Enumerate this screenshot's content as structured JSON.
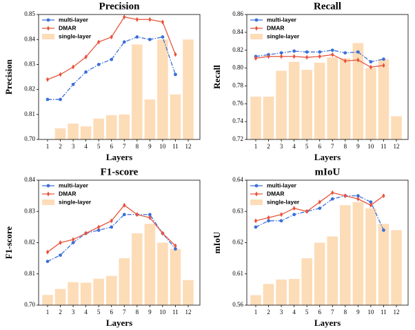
{
  "chart_data": [
    {
      "type": "combo",
      "title": "Precision",
      "x_label": "Layers",
      "y_label": "Precision",
      "categories": [
        1,
        2,
        3,
        4,
        5,
        6,
        7,
        8,
        9,
        10,
        11,
        12
      ],
      "ylim": [
        0.7,
        0.85
      ],
      "yticks": [
        {
          "value": 0.7,
          "label": "0.70"
        },
        0.81,
        0.82,
        0.83,
        0.84,
        0.85
      ],
      "series": [
        {
          "name": "multi-layer",
          "type": "line",
          "color": "#3b6fd9",
          "values": [
            0.816,
            0.816,
            0.822,
            0.827,
            0.83,
            0.832,
            0.839,
            0.841,
            0.84,
            0.841,
            0.826,
            null
          ]
        },
        {
          "name": "DMAR",
          "type": "line",
          "color": "#e8543c",
          "values": [
            0.824,
            0.826,
            0.829,
            0.833,
            0.839,
            0.841,
            0.849,
            0.848,
            0.848,
            0.847,
            0.834,
            null
          ]
        },
        {
          "name": "single-layer",
          "type": "bar",
          "color": "#fddcb8",
          "values": [
            0.701,
            0.749,
            0.77,
            0.758,
            0.792,
            0.807,
            0.81,
            0.838,
            0.816,
            0.84,
            0.818,
            0.84
          ]
        }
      ]
    },
    {
      "type": "combo",
      "title": "Recall",
      "x_label": "Layers",
      "y_label": "Recall",
      "categories": [
        1,
        2,
        3,
        4,
        5,
        6,
        7,
        8,
        9,
        10,
        11,
        12
      ],
      "ylim": [
        0.72,
        0.86
      ],
      "yticks": [
        0.72,
        0.74,
        0.76,
        0.78,
        {
          "value": 0.8,
          "label": "0.80"
        },
        0.82,
        0.84,
        0.86
      ],
      "series": [
        {
          "name": "multi-layer",
          "type": "line",
          "color": "#3b6fd9",
          "values": [
            0.813,
            0.815,
            0.817,
            0.819,
            0.818,
            0.818,
            0.82,
            0.817,
            0.818,
            0.807,
            0.81,
            null
          ]
        },
        {
          "name": "DMAR",
          "type": "line",
          "color": "#e8543c",
          "values": [
            0.811,
            0.813,
            0.813,
            0.813,
            0.812,
            0.813,
            0.815,
            0.808,
            0.809,
            0.801,
            0.803,
            null
          ]
        },
        {
          "name": "single-layer",
          "type": "bar",
          "color": "#fddcb8",
          "values": [
            0.768,
            0.768,
            0.797,
            0.807,
            0.798,
            0.806,
            0.812,
            0.811,
            0.828,
            0.8,
            0.81,
            0.746
          ]
        }
      ]
    },
    {
      "type": "combo",
      "title": "F1-score",
      "x_label": "Layers",
      "y_label": "F1-score",
      "categories": [
        1,
        2,
        3,
        4,
        5,
        6,
        7,
        8,
        9,
        10,
        11,
        12
      ],
      "ylim": [
        0.7,
        0.84
      ],
      "yticks": [
        {
          "value": 0.7,
          "label": "0.70"
        },
        0.81,
        0.82,
        0.83,
        0.84
      ],
      "series": [
        {
          "name": "multi-layer",
          "type": "line",
          "color": "#3b6fd9",
          "values": [
            0.814,
            0.816,
            0.82,
            0.823,
            0.824,
            0.825,
            0.829,
            0.829,
            0.829,
            0.823,
            0.818,
            null
          ]
        },
        {
          "name": "DMAR",
          "type": "line",
          "color": "#e8543c",
          "values": [
            0.817,
            0.82,
            0.821,
            0.823,
            0.825,
            0.827,
            0.832,
            0.829,
            0.828,
            0.823,
            0.819,
            null
          ]
        },
        {
          "name": "single-layer",
          "type": "bar",
          "color": "#fddcb8",
          "values": [
            0.736,
            0.757,
            0.781,
            0.779,
            0.793,
            0.803,
            0.815,
            0.823,
            0.826,
            0.82,
            0.818,
            0.788
          ]
        }
      ]
    },
    {
      "type": "combo",
      "title": "mIoU",
      "x_label": "Layers",
      "y_label": "mIoU",
      "categories": [
        1,
        2,
        3,
        4,
        5,
        6,
        7,
        8,
        9,
        10,
        11,
        12
      ],
      "ylim": [
        0.56,
        0.64
      ],
      "yticks": [
        0.56,
        0.61,
        0.62,
        0.63,
        0.64
      ],
      "series": [
        {
          "name": "multi-layer",
          "type": "line",
          "color": "#3b6fd9",
          "values": [
            0.625,
            0.627,
            0.627,
            0.629,
            0.63,
            0.631,
            0.634,
            0.635,
            0.635,
            0.633,
            0.624,
            null
          ]
        },
        {
          "name": "DMAR",
          "type": "line",
          "color": "#e8543c",
          "values": [
            0.627,
            0.628,
            0.629,
            0.631,
            0.63,
            0.633,
            0.636,
            0.635,
            0.634,
            0.632,
            0.635,
            null
          ]
        },
        {
          "name": "single-layer",
          "type": "bar",
          "color": "#fddcb8",
          "values": [
            0.576,
            0.594,
            0.601,
            0.602,
            0.615,
            0.62,
            0.622,
            0.632,
            0.633,
            0.631,
            0.626,
            0.624
          ]
        }
      ]
    }
  ]
}
